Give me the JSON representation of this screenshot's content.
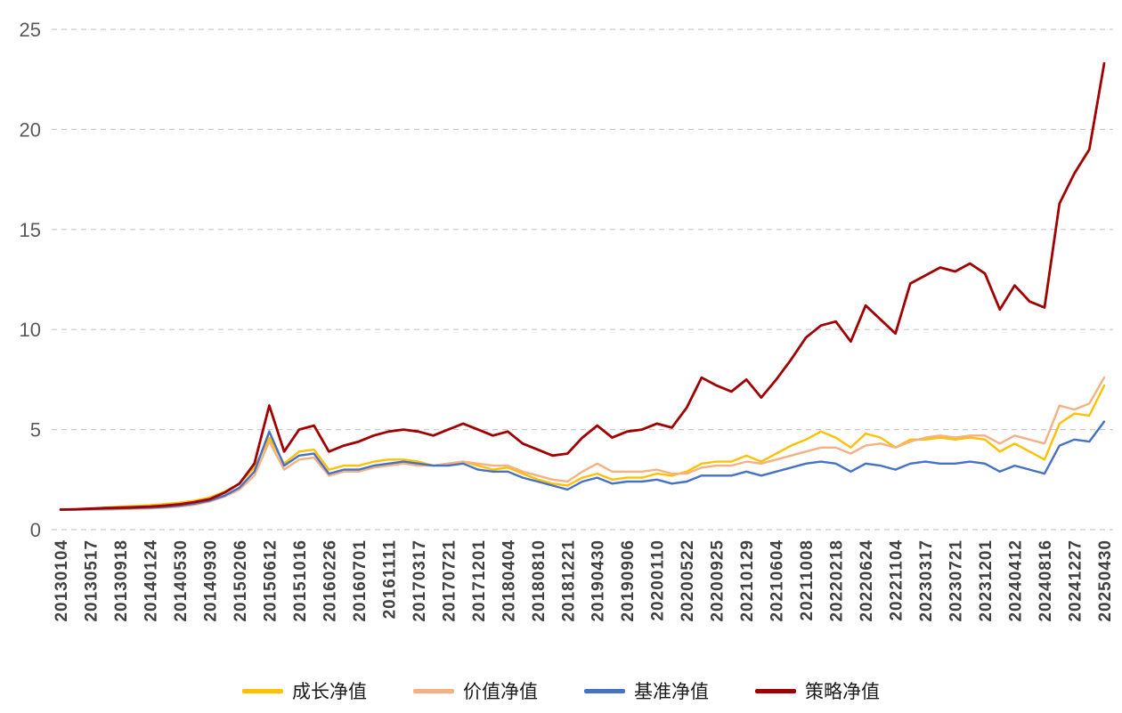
{
  "axis": {
    "y_label_color": "#595959",
    "x_label_color": "#404040",
    "grid_color": "#c9c9c9"
  },
  "chart_data": {
    "type": "line",
    "title": "",
    "xlabel": "",
    "ylabel": "",
    "ylim": [
      0,
      25
    ],
    "yticks": [
      0,
      5,
      10,
      15,
      20,
      25
    ],
    "grid": "dashed-horizontal",
    "legend_position": "bottom",
    "points_per_tick_interval": 2,
    "x_tick_labels": [
      "20130104",
      "20130517",
      "20130918",
      "20140124",
      "20140530",
      "20140930",
      "20150206",
      "20150612",
      "20151016",
      "20160226",
      "20160701",
      "20161111",
      "20170317",
      "20170721",
      "20171201",
      "20180404",
      "20180810",
      "20181221",
      "20190430",
      "20190906",
      "20200110",
      "20200522",
      "20200925",
      "20210129",
      "20210604",
      "20211008",
      "20220218",
      "20220624",
      "20221104",
      "20230317",
      "20230721",
      "20231201",
      "20240412",
      "20240816",
      "20241227",
      "20250430"
    ],
    "series": [
      {
        "key": "growth",
        "name": "成长净值",
        "color": "#FFC000",
        "values": [
          1.0,
          1.02,
          1.05,
          1.1,
          1.15,
          1.18,
          1.22,
          1.28,
          1.35,
          1.45,
          1.6,
          1.9,
          2.3,
          3.1,
          4.6,
          3.3,
          3.9,
          4.0,
          3.0,
          3.2,
          3.2,
          3.4,
          3.5,
          3.5,
          3.4,
          3.2,
          3.3,
          3.4,
          3.2,
          3.0,
          3.1,
          2.8,
          2.5,
          2.3,
          2.2,
          2.6,
          2.8,
          2.5,
          2.6,
          2.6,
          2.8,
          2.7,
          2.9,
          3.3,
          3.4,
          3.4,
          3.7,
          3.4,
          3.8,
          4.2,
          4.5,
          4.9,
          4.6,
          4.1,
          4.8,
          4.6,
          4.1,
          4.5,
          4.5,
          4.6,
          4.5,
          4.6,
          4.5,
          3.9,
          4.3,
          3.9,
          3.5,
          5.3,
          5.8,
          5.7,
          7.2
        ]
      },
      {
        "key": "value",
        "name": "价值净值",
        "color": "#F4B183",
        "values": [
          1.0,
          1.0,
          1.0,
          1.0,
          1.02,
          1.04,
          1.06,
          1.1,
          1.15,
          1.25,
          1.4,
          1.65,
          2.0,
          2.7,
          4.4,
          3.0,
          3.5,
          3.6,
          2.7,
          2.9,
          2.9,
          3.1,
          3.2,
          3.3,
          3.2,
          3.2,
          3.3,
          3.4,
          3.3,
          3.2,
          3.2,
          2.9,
          2.7,
          2.5,
          2.4,
          2.9,
          3.3,
          2.9,
          2.9,
          2.9,
          3.0,
          2.8,
          2.8,
          3.1,
          3.2,
          3.2,
          3.4,
          3.3,
          3.5,
          3.7,
          3.9,
          4.1,
          4.1,
          3.8,
          4.2,
          4.3,
          4.1,
          4.4,
          4.6,
          4.7,
          4.6,
          4.7,
          4.7,
          4.3,
          4.7,
          4.5,
          4.3,
          6.2,
          6.0,
          6.3,
          7.6
        ]
      },
      {
        "key": "benchmark",
        "name": "基准净值",
        "color": "#4472C4",
        "values": [
          1.0,
          1.0,
          1.02,
          1.04,
          1.06,
          1.08,
          1.1,
          1.14,
          1.2,
          1.3,
          1.45,
          1.7,
          2.1,
          2.9,
          4.9,
          3.2,
          3.7,
          3.8,
          2.8,
          3.0,
          3.0,
          3.2,
          3.3,
          3.4,
          3.3,
          3.2,
          3.2,
          3.3,
          3.0,
          2.9,
          2.9,
          2.6,
          2.4,
          2.2,
          2.0,
          2.4,
          2.6,
          2.3,
          2.4,
          2.4,
          2.5,
          2.3,
          2.4,
          2.7,
          2.7,
          2.7,
          2.9,
          2.7,
          2.9,
          3.1,
          3.3,
          3.4,
          3.3,
          2.9,
          3.3,
          3.2,
          3.0,
          3.3,
          3.4,
          3.3,
          3.3,
          3.4,
          3.3,
          2.9,
          3.2,
          3.0,
          2.8,
          4.2,
          4.5,
          4.4,
          5.4
        ]
      },
      {
        "key": "strategy",
        "name": "策略净值",
        "color": "#A00000",
        "values": [
          1.0,
          1.02,
          1.05,
          1.08,
          1.1,
          1.12,
          1.15,
          1.2,
          1.27,
          1.38,
          1.52,
          1.85,
          2.3,
          3.3,
          6.2,
          3.9,
          5.0,
          5.2,
          3.9,
          4.2,
          4.4,
          4.7,
          4.9,
          5.0,
          4.9,
          4.7,
          5.0,
          5.3,
          5.0,
          4.7,
          4.9,
          4.3,
          4.0,
          3.7,
          3.8,
          4.6,
          5.2,
          4.6,
          4.9,
          5.0,
          5.3,
          5.1,
          6.1,
          7.6,
          7.2,
          6.9,
          7.5,
          6.6,
          7.5,
          8.5,
          9.6,
          10.2,
          10.4,
          9.4,
          11.2,
          10.5,
          9.8,
          12.3,
          12.7,
          13.1,
          12.9,
          13.3,
          12.8,
          11.0,
          12.2,
          11.4,
          11.1,
          16.3,
          17.8,
          19.0,
          23.3
        ]
      }
    ]
  }
}
